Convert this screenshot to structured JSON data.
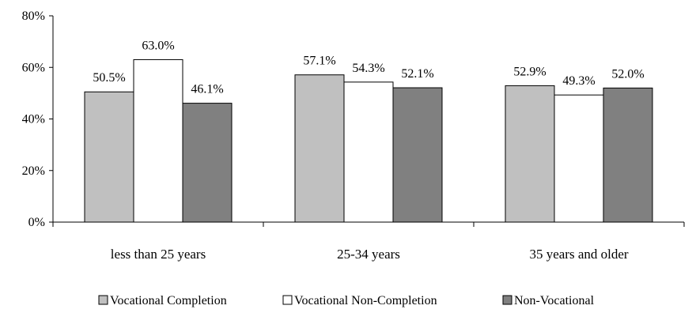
{
  "chart_data": {
    "type": "bar",
    "title": "",
    "xlabel": "",
    "ylabel": "",
    "categories": [
      "less than 25 years",
      "25-34 years",
      "35 years and older"
    ],
    "series": [
      {
        "name": "Vocational Completion",
        "values": [
          50.5,
          57.1,
          52.9
        ],
        "color": "#c0c0c0"
      },
      {
        "name": "Vocational Non-Completion",
        "values": [
          63.0,
          54.3,
          49.3
        ],
        "color": "#ffffff"
      },
      {
        "name": "Non-Vocational",
        "values": [
          46.1,
          52.1,
          52.0
        ],
        "color": "#808080"
      }
    ],
    "data_labels": [
      [
        "50.5%",
        "63.0%",
        "46.1%"
      ],
      [
        "57.1%",
        "54.3%",
        "52.1%"
      ],
      [
        "52.9%",
        "49.3%",
        "52.0%"
      ]
    ],
    "ylim": [
      0,
      80
    ],
    "yticks": [
      0,
      20,
      40,
      60,
      80
    ],
    "ytick_labels": [
      "0%",
      "20%",
      "40%",
      "60%",
      "80%"
    ],
    "grid": false,
    "legend_position": "bottom"
  }
}
